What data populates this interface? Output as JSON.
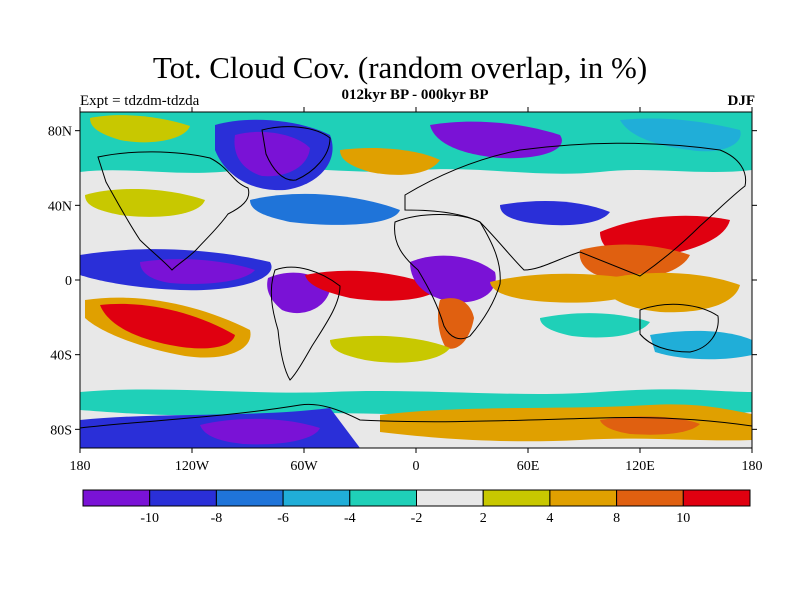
{
  "map": {
    "title": "Tot. Cloud Cov. (random overlap, in %)",
    "subtitle": "012kyr BP - 000kyr BP",
    "left_label": "Expt = tdzdm-tdzda",
    "right_label": "DJF",
    "lat_labels": [
      "80N",
      "40N",
      "0",
      "40S",
      "80S"
    ],
    "lat_values": [
      80,
      40,
      0,
      -40,
      -80
    ],
    "lon_labels": [
      "180",
      "120W",
      "60W",
      "0",
      "60E",
      "120E",
      "180"
    ],
    "lon_values": [
      -180,
      -120,
      -60,
      0,
      60,
      120,
      180
    ]
  },
  "colorbar": {
    "colors": [
      "#7a12d6",
      "#2a2fd8",
      "#1f74d9",
      "#20aed8",
      "#1fd0b8",
      "#e8e8e8",
      "#c8c800",
      "#e0a000",
      "#e06010",
      "#e00010"
    ],
    "labels": [
      "-10",
      "-8",
      "-6",
      "-4",
      "-2",
      "2",
      "4",
      "8",
      "10"
    ]
  }
}
